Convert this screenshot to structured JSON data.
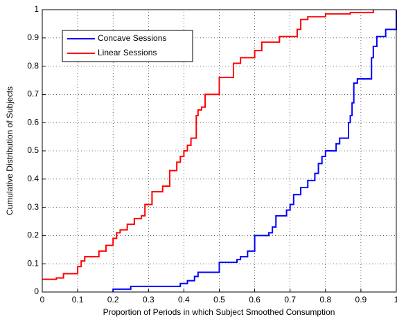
{
  "chart_data": {
    "type": "line",
    "xlabel": "Proportion of Periods in which Subject Smoothed Consumption",
    "ylabel": "Cumulative Distribution of Subjects",
    "xlim": [
      0,
      1
    ],
    "ylim": [
      0,
      1
    ],
    "xticks": [
      0,
      0.1,
      0.2,
      0.3,
      0.4,
      0.5,
      0.6,
      0.7,
      0.8,
      0.9,
      1
    ],
    "yticks": [
      0,
      0.1,
      0.2,
      0.3,
      0.4,
      0.5,
      0.6,
      0.7,
      0.8,
      0.9,
      1
    ],
    "grid": true,
    "legend": "upper left",
    "series": [
      {
        "name": "Concave Sessions",
        "color": "#0000ff",
        "x": [
          0.2,
          0.2,
          0.25,
          0.25,
          0.39,
          0.39,
          0.41,
          0.41,
          0.43,
          0.43,
          0.44,
          0.44,
          0.5,
          0.5,
          0.55,
          0.55,
          0.56,
          0.56,
          0.58,
          0.58,
          0.6,
          0.6,
          0.64,
          0.64,
          0.65,
          0.65,
          0.66,
          0.66,
          0.69,
          0.69,
          0.7,
          0.7,
          0.71,
          0.71,
          0.73,
          0.73,
          0.75,
          0.75,
          0.77,
          0.77,
          0.78,
          0.78,
          0.79,
          0.79,
          0.8,
          0.8,
          0.83,
          0.83,
          0.84,
          0.84,
          0.865,
          0.865,
          0.87,
          0.87,
          0.875,
          0.875,
          0.88,
          0.88,
          0.89,
          0.89,
          0.93,
          0.93,
          0.935,
          0.935,
          0.945,
          0.945,
          0.97,
          0.97,
          1,
          1
        ],
        "values": [
          0,
          0.01,
          0.01,
          0.02,
          0.02,
          0.03,
          0.03,
          0.04,
          0.04,
          0.055,
          0.055,
          0.07,
          0.07,
          0.105,
          0.105,
          0.115,
          0.115,
          0.125,
          0.125,
          0.145,
          0.145,
          0.2,
          0.2,
          0.21,
          0.21,
          0.23,
          0.23,
          0.27,
          0.27,
          0.29,
          0.29,
          0.31,
          0.31,
          0.345,
          0.345,
          0.37,
          0.37,
          0.395,
          0.395,
          0.42,
          0.42,
          0.455,
          0.455,
          0.48,
          0.48,
          0.5,
          0.5,
          0.525,
          0.525,
          0.545,
          0.545,
          0.6,
          0.6,
          0.625,
          0.625,
          0.67,
          0.67,
          0.74,
          0.74,
          0.755,
          0.755,
          0.83,
          0.83,
          0.87,
          0.87,
          0.905,
          0.905,
          0.93,
          0.93,
          1
        ]
      },
      {
        "name": "Linear Sessions",
        "color": "#ff0000",
        "x": [
          0,
          0.04,
          0.04,
          0.06,
          0.06,
          0.1,
          0.1,
          0.11,
          0.11,
          0.12,
          0.12,
          0.16,
          0.16,
          0.18,
          0.18,
          0.2,
          0.2,
          0.21,
          0.21,
          0.22,
          0.22,
          0.24,
          0.24,
          0.26,
          0.26,
          0.28,
          0.28,
          0.29,
          0.29,
          0.31,
          0.31,
          0.34,
          0.34,
          0.36,
          0.36,
          0.38,
          0.38,
          0.39,
          0.39,
          0.4,
          0.4,
          0.41,
          0.41,
          0.42,
          0.42,
          0.435,
          0.435,
          0.44,
          0.44,
          0.45,
          0.45,
          0.46,
          0.46,
          0.5,
          0.5,
          0.54,
          0.54,
          0.56,
          0.56,
          0.6,
          0.6,
          0.62,
          0.62,
          0.67,
          0.67,
          0.72,
          0.72,
          0.73,
          0.73,
          0.75,
          0.75,
          0.8,
          0.8,
          0.87,
          0.87,
          0.935,
          0.935
        ],
        "values": [
          0.045,
          0.045,
          0.05,
          0.05,
          0.065,
          0.065,
          0.09,
          0.09,
          0.11,
          0.11,
          0.125,
          0.125,
          0.145,
          0.145,
          0.165,
          0.165,
          0.19,
          0.19,
          0.21,
          0.21,
          0.22,
          0.22,
          0.24,
          0.24,
          0.26,
          0.26,
          0.27,
          0.27,
          0.31,
          0.31,
          0.355,
          0.355,
          0.375,
          0.375,
          0.43,
          0.43,
          0.46,
          0.46,
          0.48,
          0.48,
          0.5,
          0.5,
          0.52,
          0.52,
          0.545,
          0.545,
          0.625,
          0.625,
          0.645,
          0.645,
          0.655,
          0.655,
          0.7,
          0.7,
          0.76,
          0.76,
          0.81,
          0.81,
          0.83,
          0.83,
          0.855,
          0.855,
          0.885,
          0.885,
          0.905,
          0.905,
          0.93,
          0.93,
          0.965,
          0.965,
          0.975,
          0.975,
          0.985,
          0.985,
          0.99,
          0.99,
          1
        ]
      }
    ]
  }
}
